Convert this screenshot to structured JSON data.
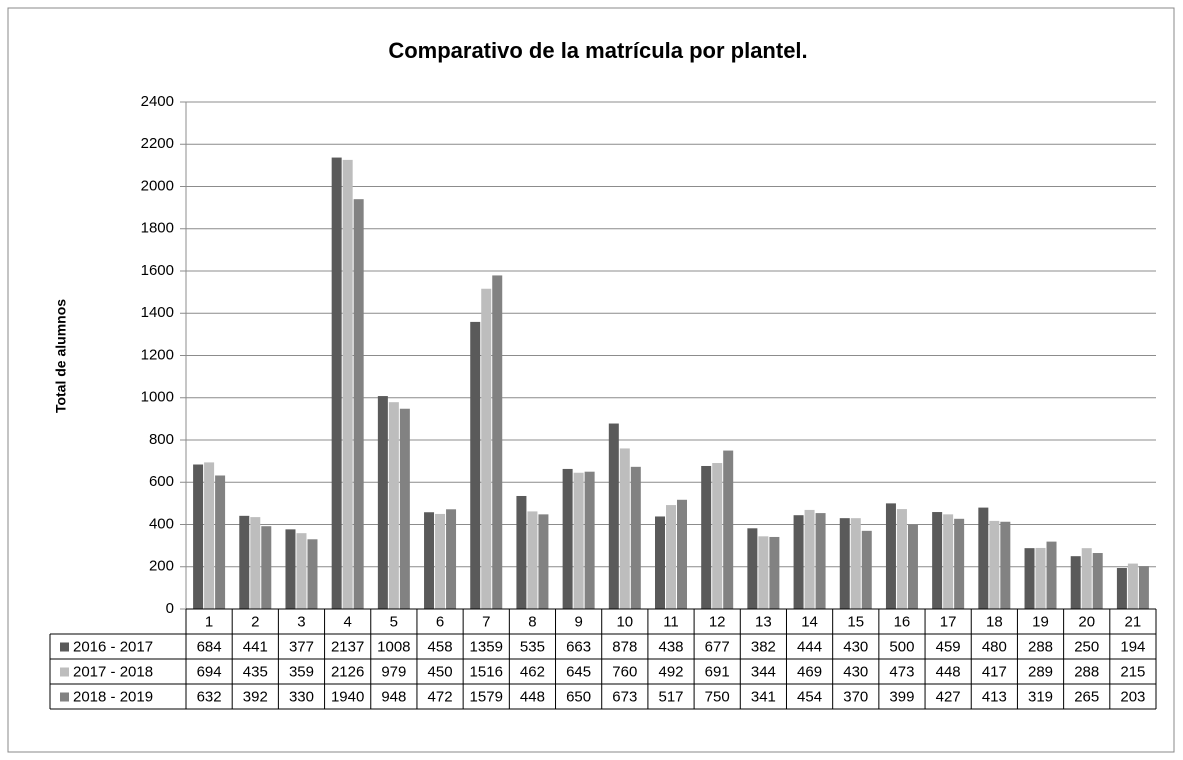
{
  "chart_data": {
    "type": "bar",
    "title": "Comparativo de la matrícula por plantel.",
    "y_label": "Total de alumnos",
    "categories": [
      "1",
      "2",
      "3",
      "4",
      "5",
      "6",
      "7",
      "8",
      "9",
      "10",
      "11",
      "12",
      "13",
      "14",
      "15",
      "16",
      "17",
      "18",
      "19",
      "20",
      "21"
    ],
    "series": [
      {
        "name": "2016 - 2017",
        "color": "#5a5a5a",
        "values": [
          684,
          441,
          377,
          2137,
          1008,
          458,
          1359,
          535,
          663,
          878,
          438,
          677,
          382,
          444,
          430,
          500,
          459,
          480,
          288,
          250,
          194
        ]
      },
      {
        "name": "2017 - 2018",
        "color": "#bdbdbd",
        "values": [
          694,
          435,
          359,
          2126,
          979,
          450,
          1516,
          462,
          645,
          760,
          492,
          691,
          344,
          469,
          430,
          473,
          448,
          417,
          289,
          288,
          215
        ]
      },
      {
        "name": "2018 - 2019",
        "color": "#828282",
        "values": [
          632,
          392,
          330,
          1940,
          948,
          472,
          1579,
          448,
          650,
          673,
          517,
          750,
          341,
          454,
          370,
          399,
          427,
          413,
          319,
          265,
          203
        ]
      }
    ],
    "ylim": [
      0,
      2400
    ],
    "yticks": [
      0,
      200,
      400,
      600,
      800,
      1000,
      1200,
      1400,
      1600,
      1800,
      2000,
      2200,
      2400
    ],
    "grid": true,
    "data_table": true
  }
}
